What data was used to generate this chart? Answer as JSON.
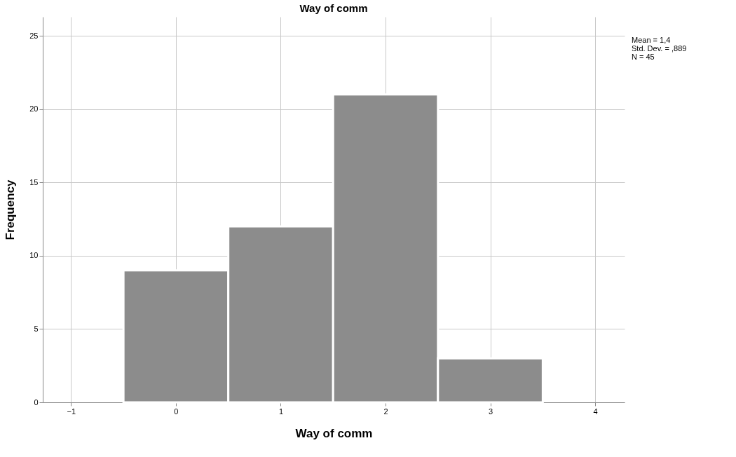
{
  "chart_data": {
    "type": "histogram",
    "title": "Way of comm",
    "xlabel": "Way of comm",
    "ylabel": "Frequency",
    "bins": [
      -0.5,
      0.5,
      1.5,
      2.5,
      3.5
    ],
    "values": [
      9,
      12,
      21,
      3
    ],
    "color": "#8c8c8c",
    "xlim": [
      -1.27,
      4.28
    ],
    "xticks": [
      -1,
      0,
      1,
      2,
      3,
      4
    ],
    "ylim": [
      0,
      26.3
    ],
    "yticks": [
      0,
      5,
      10,
      15,
      20,
      25
    ],
    "grid": true,
    "annotations": [
      "Mean = 1,4",
      "Std. Dev. = ,889",
      "N = 45"
    ]
  }
}
